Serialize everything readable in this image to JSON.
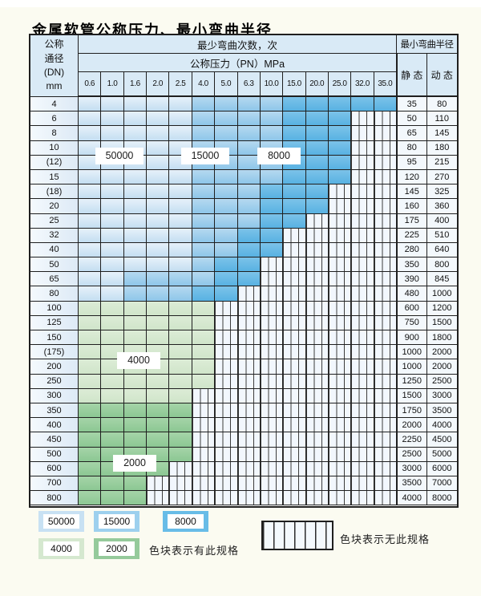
{
  "page": {
    "title": "金属软管公称压力、最小弯曲半径"
  },
  "chart_data": {
    "type": "table",
    "title": "金属软管公称压力、最小弯曲半径",
    "header": {
      "dn_label_lines": [
        "公称",
        "通径",
        "(DN)",
        "mm"
      ],
      "bend_cycles_label": "最少弯曲次数，次",
      "pressure_label": "公称压力（PN）MPa",
      "radius_label": "最小弯曲半径",
      "static_label": "静 态",
      "dynamic_label": "动 态",
      "pressures": [
        "0.6",
        "1.0",
        "1.6",
        "2.0",
        "2.5",
        "4.0",
        "5.0",
        "6.3",
        "10.0",
        "15.0",
        "20.0",
        "25.0",
        "32.0",
        "35.0"
      ]
    },
    "zone_legend": {
      "B1": {
        "value": "50000",
        "color": "#c8e1f3"
      },
      "B2": {
        "value": "15000",
        "color": "#9dd0ee"
      },
      "B3": {
        "value": "8000",
        "color": "#68bce7"
      },
      "G1": {
        "value": "4000",
        "color": "#d5e8cf"
      },
      "G2": {
        "value": "2000",
        "color": "#95ca9b"
      },
      "X": {
        "value": "no-spec",
        "color": "white-with-vertical-stripes"
      }
    },
    "overlays": {
      "b1": "50000",
      "b2": "15000",
      "b3": "8000",
      "g1": "4000",
      "g2": "2000"
    },
    "legend": {
      "has_spec_note": "色块表示有此规格",
      "no_spec_note": "色块表示无此规格"
    },
    "rows": [
      {
        "dn": "4",
        "static": "35",
        "dynamic": "80",
        "zones": [
          "B1",
          "B1",
          "B1",
          "B1",
          "B1",
          "B2",
          "B2",
          "B2",
          "B2",
          "B3",
          "B3",
          "B3",
          "B3",
          "B3"
        ]
      },
      {
        "dn": "6",
        "static": "50",
        "dynamic": "110",
        "zones": [
          "B1",
          "B1",
          "B1",
          "B1",
          "B1",
          "B2",
          "B2",
          "B2",
          "B2",
          "B3",
          "B3",
          "B3",
          "X",
          "X"
        ]
      },
      {
        "dn": "8",
        "static": "65",
        "dynamic": "145",
        "zones": [
          "B1",
          "B1",
          "B1",
          "B1",
          "B1",
          "B2",
          "B2",
          "B2",
          "B2",
          "B3",
          "B3",
          "B3",
          "X",
          "X"
        ]
      },
      {
        "dn": "10",
        "static": "80",
        "dynamic": "180",
        "zones": [
          "B1",
          "B1",
          "B1",
          "B1",
          "B1",
          "B2",
          "B2",
          "B2",
          "B2",
          "B3",
          "B3",
          "B3",
          "X",
          "X"
        ]
      },
      {
        "dn": "(12)",
        "static": "95",
        "dynamic": "215",
        "zones": [
          "B1",
          "B1",
          "B1",
          "B1",
          "B1",
          "B2",
          "B2",
          "B2",
          "B2",
          "B3",
          "B3",
          "B3",
          "X",
          "X"
        ]
      },
      {
        "dn": "15",
        "static": "120",
        "dynamic": "270",
        "zones": [
          "B1",
          "B1",
          "B1",
          "B1",
          "B1",
          "B2",
          "B2",
          "B2",
          "B2",
          "B3",
          "B3",
          "B3",
          "X",
          "X"
        ]
      },
      {
        "dn": "(18)",
        "static": "145",
        "dynamic": "325",
        "zones": [
          "B1",
          "B1",
          "B1",
          "B1",
          "B1",
          "B2",
          "B2",
          "B2",
          "B3",
          "B3",
          "B3",
          "X",
          "X",
          "X"
        ]
      },
      {
        "dn": "20",
        "static": "160",
        "dynamic": "360",
        "zones": [
          "B1",
          "B1",
          "B1",
          "B1",
          "B1",
          "B2",
          "B2",
          "B2",
          "B3",
          "B3",
          "B3",
          "X",
          "X",
          "X"
        ]
      },
      {
        "dn": "25",
        "static": "175",
        "dynamic": "400",
        "zones": [
          "B1",
          "B1",
          "B1",
          "B1",
          "B1",
          "B2",
          "B2",
          "B2",
          "B3",
          "B3",
          "X",
          "X",
          "X",
          "X"
        ]
      },
      {
        "dn": "32",
        "static": "225",
        "dynamic": "510",
        "zones": [
          "B1",
          "B1",
          "B1",
          "B1",
          "B1",
          "B2",
          "B2",
          "B3",
          "B3",
          "X",
          "X",
          "X",
          "X",
          "X"
        ]
      },
      {
        "dn": "40",
        "static": "280",
        "dynamic": "640",
        "zones": [
          "B1",
          "B1",
          "B1",
          "B1",
          "B1",
          "B2",
          "B2",
          "B3",
          "B3",
          "X",
          "X",
          "X",
          "X",
          "X"
        ]
      },
      {
        "dn": "50",
        "static": "350",
        "dynamic": "800",
        "zones": [
          "B1",
          "B1",
          "B1",
          "B1",
          "B1",
          "B2",
          "B3",
          "B3",
          "X",
          "X",
          "X",
          "X",
          "X",
          "X"
        ]
      },
      {
        "dn": "65",
        "static": "390",
        "dynamic": "845",
        "zones": [
          "B1",
          "B1",
          "B2",
          "B2",
          "B2",
          "B2",
          "B3",
          "B3",
          "X",
          "X",
          "X",
          "X",
          "X",
          "X"
        ]
      },
      {
        "dn": "80",
        "static": "480",
        "dynamic": "1000",
        "zones": [
          "B1",
          "B1",
          "B2",
          "B2",
          "B2",
          "B3",
          "B3",
          "X",
          "X",
          "X",
          "X",
          "X",
          "X",
          "X"
        ]
      },
      {
        "dn": "100",
        "static": "600",
        "dynamic": "1200",
        "zones": [
          "G1",
          "G1",
          "G1",
          "G1",
          "G1",
          "G1",
          "X",
          "X",
          "X",
          "X",
          "X",
          "X",
          "X",
          "X"
        ]
      },
      {
        "dn": "125",
        "static": "750",
        "dynamic": "1500",
        "zones": [
          "G1",
          "G1",
          "G1",
          "G1",
          "G1",
          "G1",
          "X",
          "X",
          "X",
          "X",
          "X",
          "X",
          "X",
          "X"
        ]
      },
      {
        "dn": "150",
        "static": "900",
        "dynamic": "1800",
        "zones": [
          "G1",
          "G1",
          "G1",
          "G1",
          "G1",
          "G1",
          "X",
          "X",
          "X",
          "X",
          "X",
          "X",
          "X",
          "X"
        ]
      },
      {
        "dn": "(175)",
        "static": "1000",
        "dynamic": "2000",
        "zones": [
          "G1",
          "G1",
          "G1",
          "G1",
          "G1",
          "G1",
          "X",
          "X",
          "X",
          "X",
          "X",
          "X",
          "X",
          "X"
        ]
      },
      {
        "dn": "200",
        "static": "1000",
        "dynamic": "2000",
        "zones": [
          "G1",
          "G1",
          "G1",
          "G1",
          "G1",
          "G1",
          "X",
          "X",
          "X",
          "X",
          "X",
          "X",
          "X",
          "X"
        ]
      },
      {
        "dn": "250",
        "static": "1250",
        "dynamic": "2500",
        "zones": [
          "G1",
          "G1",
          "G1",
          "G1",
          "G1",
          "G1",
          "X",
          "X",
          "X",
          "X",
          "X",
          "X",
          "X",
          "X"
        ]
      },
      {
        "dn": "300",
        "static": "1500",
        "dynamic": "3000",
        "zones": [
          "G1",
          "G1",
          "G1",
          "G1",
          "G1",
          "X",
          "X",
          "X",
          "X",
          "X",
          "X",
          "X",
          "X",
          "X"
        ]
      },
      {
        "dn": "350",
        "static": "1750",
        "dynamic": "3500",
        "zones": [
          "G2",
          "G2",
          "G2",
          "G2",
          "G2",
          "X",
          "X",
          "X",
          "X",
          "X",
          "X",
          "X",
          "X",
          "X"
        ]
      },
      {
        "dn": "400",
        "static": "2000",
        "dynamic": "4000",
        "zones": [
          "G2",
          "G2",
          "G2",
          "G2",
          "G2",
          "X",
          "X",
          "X",
          "X",
          "X",
          "X",
          "X",
          "X",
          "X"
        ]
      },
      {
        "dn": "450",
        "static": "2250",
        "dynamic": "4500",
        "zones": [
          "G2",
          "G2",
          "G2",
          "G2",
          "G2",
          "X",
          "X",
          "X",
          "X",
          "X",
          "X",
          "X",
          "X",
          "X"
        ]
      },
      {
        "dn": "500",
        "static": "2500",
        "dynamic": "5000",
        "zones": [
          "G2",
          "G2",
          "G2",
          "G2",
          "G2",
          "X",
          "X",
          "X",
          "X",
          "X",
          "X",
          "X",
          "X",
          "X"
        ]
      },
      {
        "dn": "600",
        "static": "3000",
        "dynamic": "6000",
        "zones": [
          "G2",
          "G2",
          "G2",
          "G2",
          "X",
          "X",
          "X",
          "X",
          "X",
          "X",
          "X",
          "X",
          "X",
          "X"
        ]
      },
      {
        "dn": "700",
        "static": "3500",
        "dynamic": "7000",
        "zones": [
          "G2",
          "G2",
          "G2",
          "X",
          "X",
          "X",
          "X",
          "X",
          "X",
          "X",
          "X",
          "X",
          "X",
          "X"
        ]
      },
      {
        "dn": "800",
        "static": "4000",
        "dynamic": "8000",
        "zones": [
          "G2",
          "G2",
          "G2",
          "X",
          "X",
          "X",
          "X",
          "X",
          "X",
          "X",
          "X",
          "X",
          "X",
          "X"
        ]
      }
    ]
  }
}
